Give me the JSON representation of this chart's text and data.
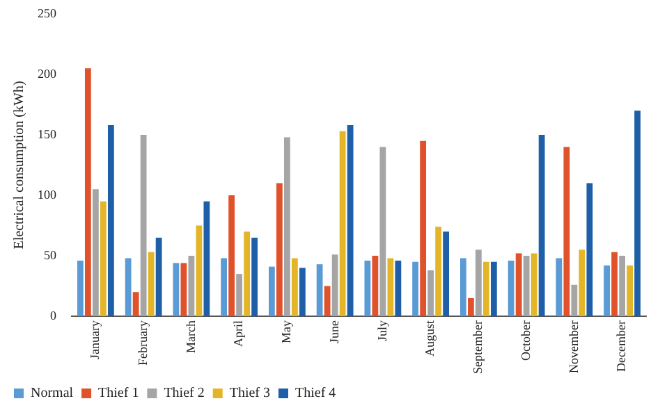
{
  "chart_data": {
    "type": "bar",
    "ylabel": "Electrical consumption (kWh)",
    "categories": [
      "January",
      "February",
      "March",
      "April",
      "May",
      "June",
      "July",
      "August",
      "September",
      "October",
      "November",
      "December"
    ],
    "series": [
      {
        "name": "Normal",
        "color": "#5b9bd5",
        "values": [
          46,
          48,
          44,
          48,
          41,
          43,
          46,
          45,
          48,
          46,
          48,
          42
        ]
      },
      {
        "name": "Thief 1",
        "color": "#e0522b",
        "values": [
          205,
          20,
          44,
          100,
          110,
          25,
          50,
          145,
          15,
          52,
          140,
          53
        ]
      },
      {
        "name": "Thief 2",
        "color": "#a5a5a5",
        "values": [
          105,
          150,
          50,
          35,
          148,
          51,
          140,
          38,
          55,
          50,
          26,
          50
        ]
      },
      {
        "name": "Thief 3",
        "color": "#e3b62a",
        "values": [
          95,
          53,
          75,
          70,
          48,
          153,
          48,
          74,
          45,
          52,
          55,
          42
        ]
      },
      {
        "name": "Thief 4",
        "color": "#1f5fa8",
        "values": [
          158,
          65,
          95,
          65,
          40,
          158,
          46,
          70,
          45,
          150,
          110,
          170
        ]
      }
    ],
    "ylim": [
      0,
      250
    ],
    "yticks": [
      0,
      50,
      100,
      150,
      200,
      250
    ],
    "grid": false,
    "legend": "bottom left"
  }
}
